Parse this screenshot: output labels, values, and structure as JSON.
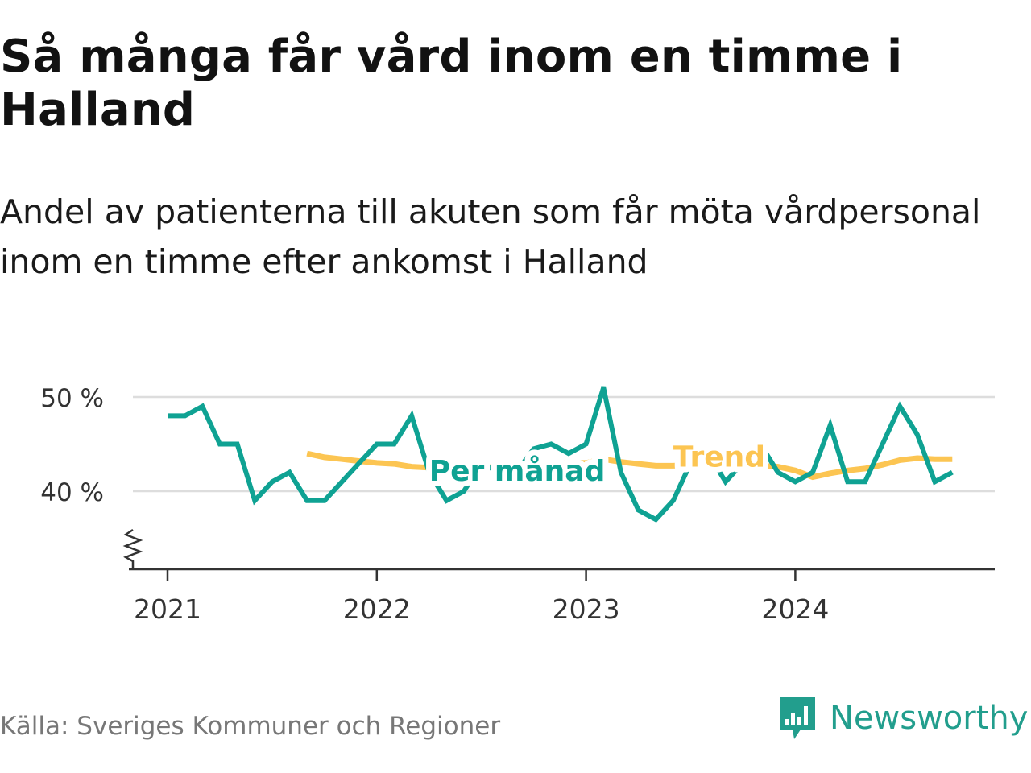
{
  "header": {
    "title": "Så många får vård inom en timme i Halland",
    "subtitle": "Andel av patienterna till akuten som får möta vårdpersonal inom en timme efter ankomst i Halland"
  },
  "footer": {
    "source": "Källa: Sveriges Kommuner och Regioner",
    "brand": "Newsworthy"
  },
  "colors": {
    "monthly": "#0FA293",
    "trend": "#FCC552",
    "grid": "#dddddd",
    "axis": "#333333",
    "brand": "#229E8D"
  },
  "chart_data": {
    "type": "line",
    "title": "Så många får vård inom en timme i Halland",
    "subtitle": "Andel av patienterna till akuten som får möta vårdpersonal inom en timme efter ankomst i Halland",
    "xlabel": "",
    "ylabel": "",
    "unit": "%",
    "ylim": [
      32,
      51
    ],
    "y_ticks": [
      40,
      50
    ],
    "y_tick_labels": [
      "40 %",
      "50 %"
    ],
    "y_axis_broken": true,
    "x_ticks": [
      "2021-01",
      "2022-01",
      "2023-01",
      "2024-01"
    ],
    "x_tick_labels": [
      "2021",
      "2022",
      "2023",
      "2024"
    ],
    "grid": "horizontal",
    "legend": "inline labels",
    "series": [
      {
        "name": "Per månad",
        "label_x": "2022-04",
        "label_y": 41.1,
        "color": "#0FA293",
        "x": [
          "2021-01",
          "2021-02",
          "2021-03",
          "2021-04",
          "2021-05",
          "2021-06",
          "2021-07",
          "2021-08",
          "2021-09",
          "2021-10",
          "2021-11",
          "2021-12",
          "2022-01",
          "2022-02",
          "2022-03",
          "2022-04",
          "2022-05",
          "2022-06",
          "2022-07",
          "2022-08",
          "2022-09",
          "2022-10",
          "2022-11",
          "2022-12",
          "2023-01",
          "2023-02",
          "2023-03",
          "2023-04",
          "2023-05",
          "2023-06",
          "2023-07",
          "2023-08",
          "2023-09",
          "2023-10",
          "2023-11",
          "2023-12",
          "2024-01",
          "2024-02",
          "2024-03",
          "2024-04",
          "2024-05",
          "2024-06",
          "2024-07",
          "2024-08",
          "2024-09",
          "2024-10"
        ],
        "values": [
          48,
          48,
          49,
          45,
          45,
          39,
          41,
          42,
          39,
          39,
          41,
          43,
          45,
          45,
          48,
          42,
          39,
          40,
          43,
          42,
          42,
          44.5,
          45,
          44,
          45,
          51,
          42,
          38,
          37,
          39,
          43,
          44,
          41,
          43,
          45,
          42,
          41,
          42,
          47,
          41,
          41,
          45,
          49,
          46,
          41,
          42
        ]
      },
      {
        "name": "Trend",
        "label_x": "2023-06",
        "label_y": 42.6,
        "color": "#FCC552",
        "x": [
          "2021-09",
          "2021-10",
          "2021-11",
          "2021-12",
          "2022-01",
          "2022-02",
          "2022-03",
          "2022-04",
          "2022-05",
          "2022-06",
          "2022-07",
          "2022-08",
          "2022-09",
          "2022-10",
          "2022-11",
          "2022-12",
          "2023-01",
          "2023-02",
          "2023-03",
          "2023-04",
          "2023-05",
          "2023-06",
          "2023-07",
          "2023-08",
          "2023-09",
          "2023-10",
          "2023-11",
          "2023-12",
          "2024-01",
          "2024-02",
          "2024-03",
          "2024-04",
          "2024-05",
          "2024-06",
          "2024-07",
          "2024-08",
          "2024-09",
          "2024-10"
        ],
        "values": [
          44,
          43.6,
          43.4,
          43.2,
          43,
          42.9,
          42.6,
          42.5,
          42.4,
          42.5,
          42.6,
          42.5,
          42.5,
          42.6,
          42.8,
          43,
          43,
          43.4,
          43.1,
          42.9,
          42.7,
          42.7,
          42.8,
          42.8,
          42.7,
          42.7,
          42.7,
          42.6,
          42.2,
          41.5,
          41.9,
          42.2,
          42.4,
          42.8,
          43.3,
          43.5,
          43.4,
          43.4
        ]
      }
    ]
  }
}
